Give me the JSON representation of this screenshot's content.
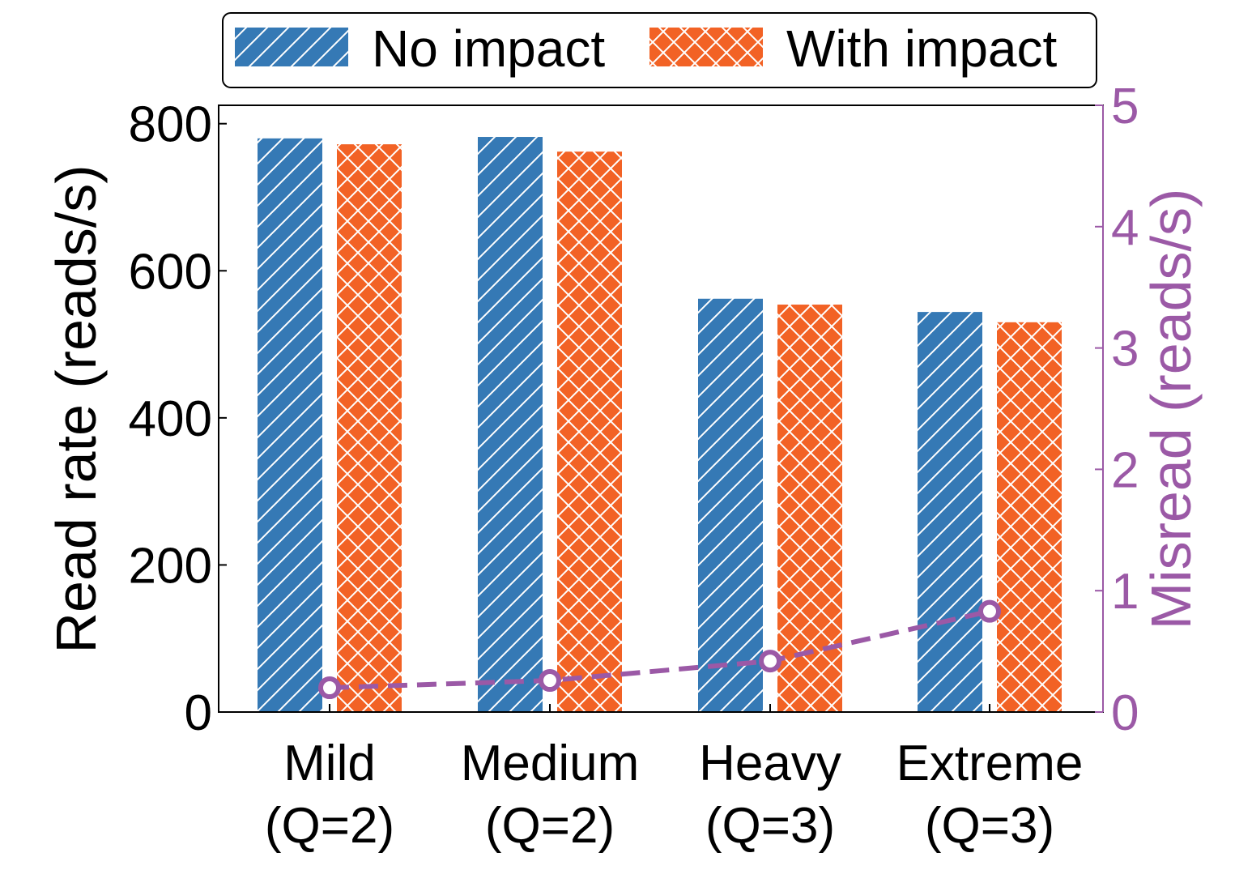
{
  "chart_data": {
    "type": "bar",
    "categories": [
      {
        "line1": "Mild",
        "line2": "(Q=2)"
      },
      {
        "line1": "Medium",
        "line2": "(Q=2)"
      },
      {
        "line1": "Heavy",
        "line2": "(Q=3)"
      },
      {
        "line1": "Extreme",
        "line2": "(Q=3)"
      }
    ],
    "series": [
      {
        "name": "No impact",
        "color": "#3579b5",
        "hatch": "diagonal",
        "values": [
          780,
          782,
          562,
          544
        ]
      },
      {
        "name": "With impact",
        "color": "#f26225",
        "hatch": "cross",
        "values": [
          772,
          762,
          554,
          530
        ]
      }
    ],
    "line_series": {
      "name": "Misread",
      "color": "#9b59a6",
      "style": "dashed",
      "marker": "circle-open",
      "values": [
        0.2,
        0.26,
        0.42,
        0.83
      ]
    },
    "ylabel": "Read rate (reads/s)",
    "y2label": "Misread (reads/s)",
    "ylim": [
      0,
      825
    ],
    "y2lim": [
      0,
      5
    ],
    "yticks": [
      "0",
      "200",
      "400",
      "600",
      "800"
    ],
    "y2ticks": [
      "0",
      "1",
      "2",
      "3",
      "4",
      "5"
    ],
    "legend_position": "top-center",
    "grid": false
  }
}
